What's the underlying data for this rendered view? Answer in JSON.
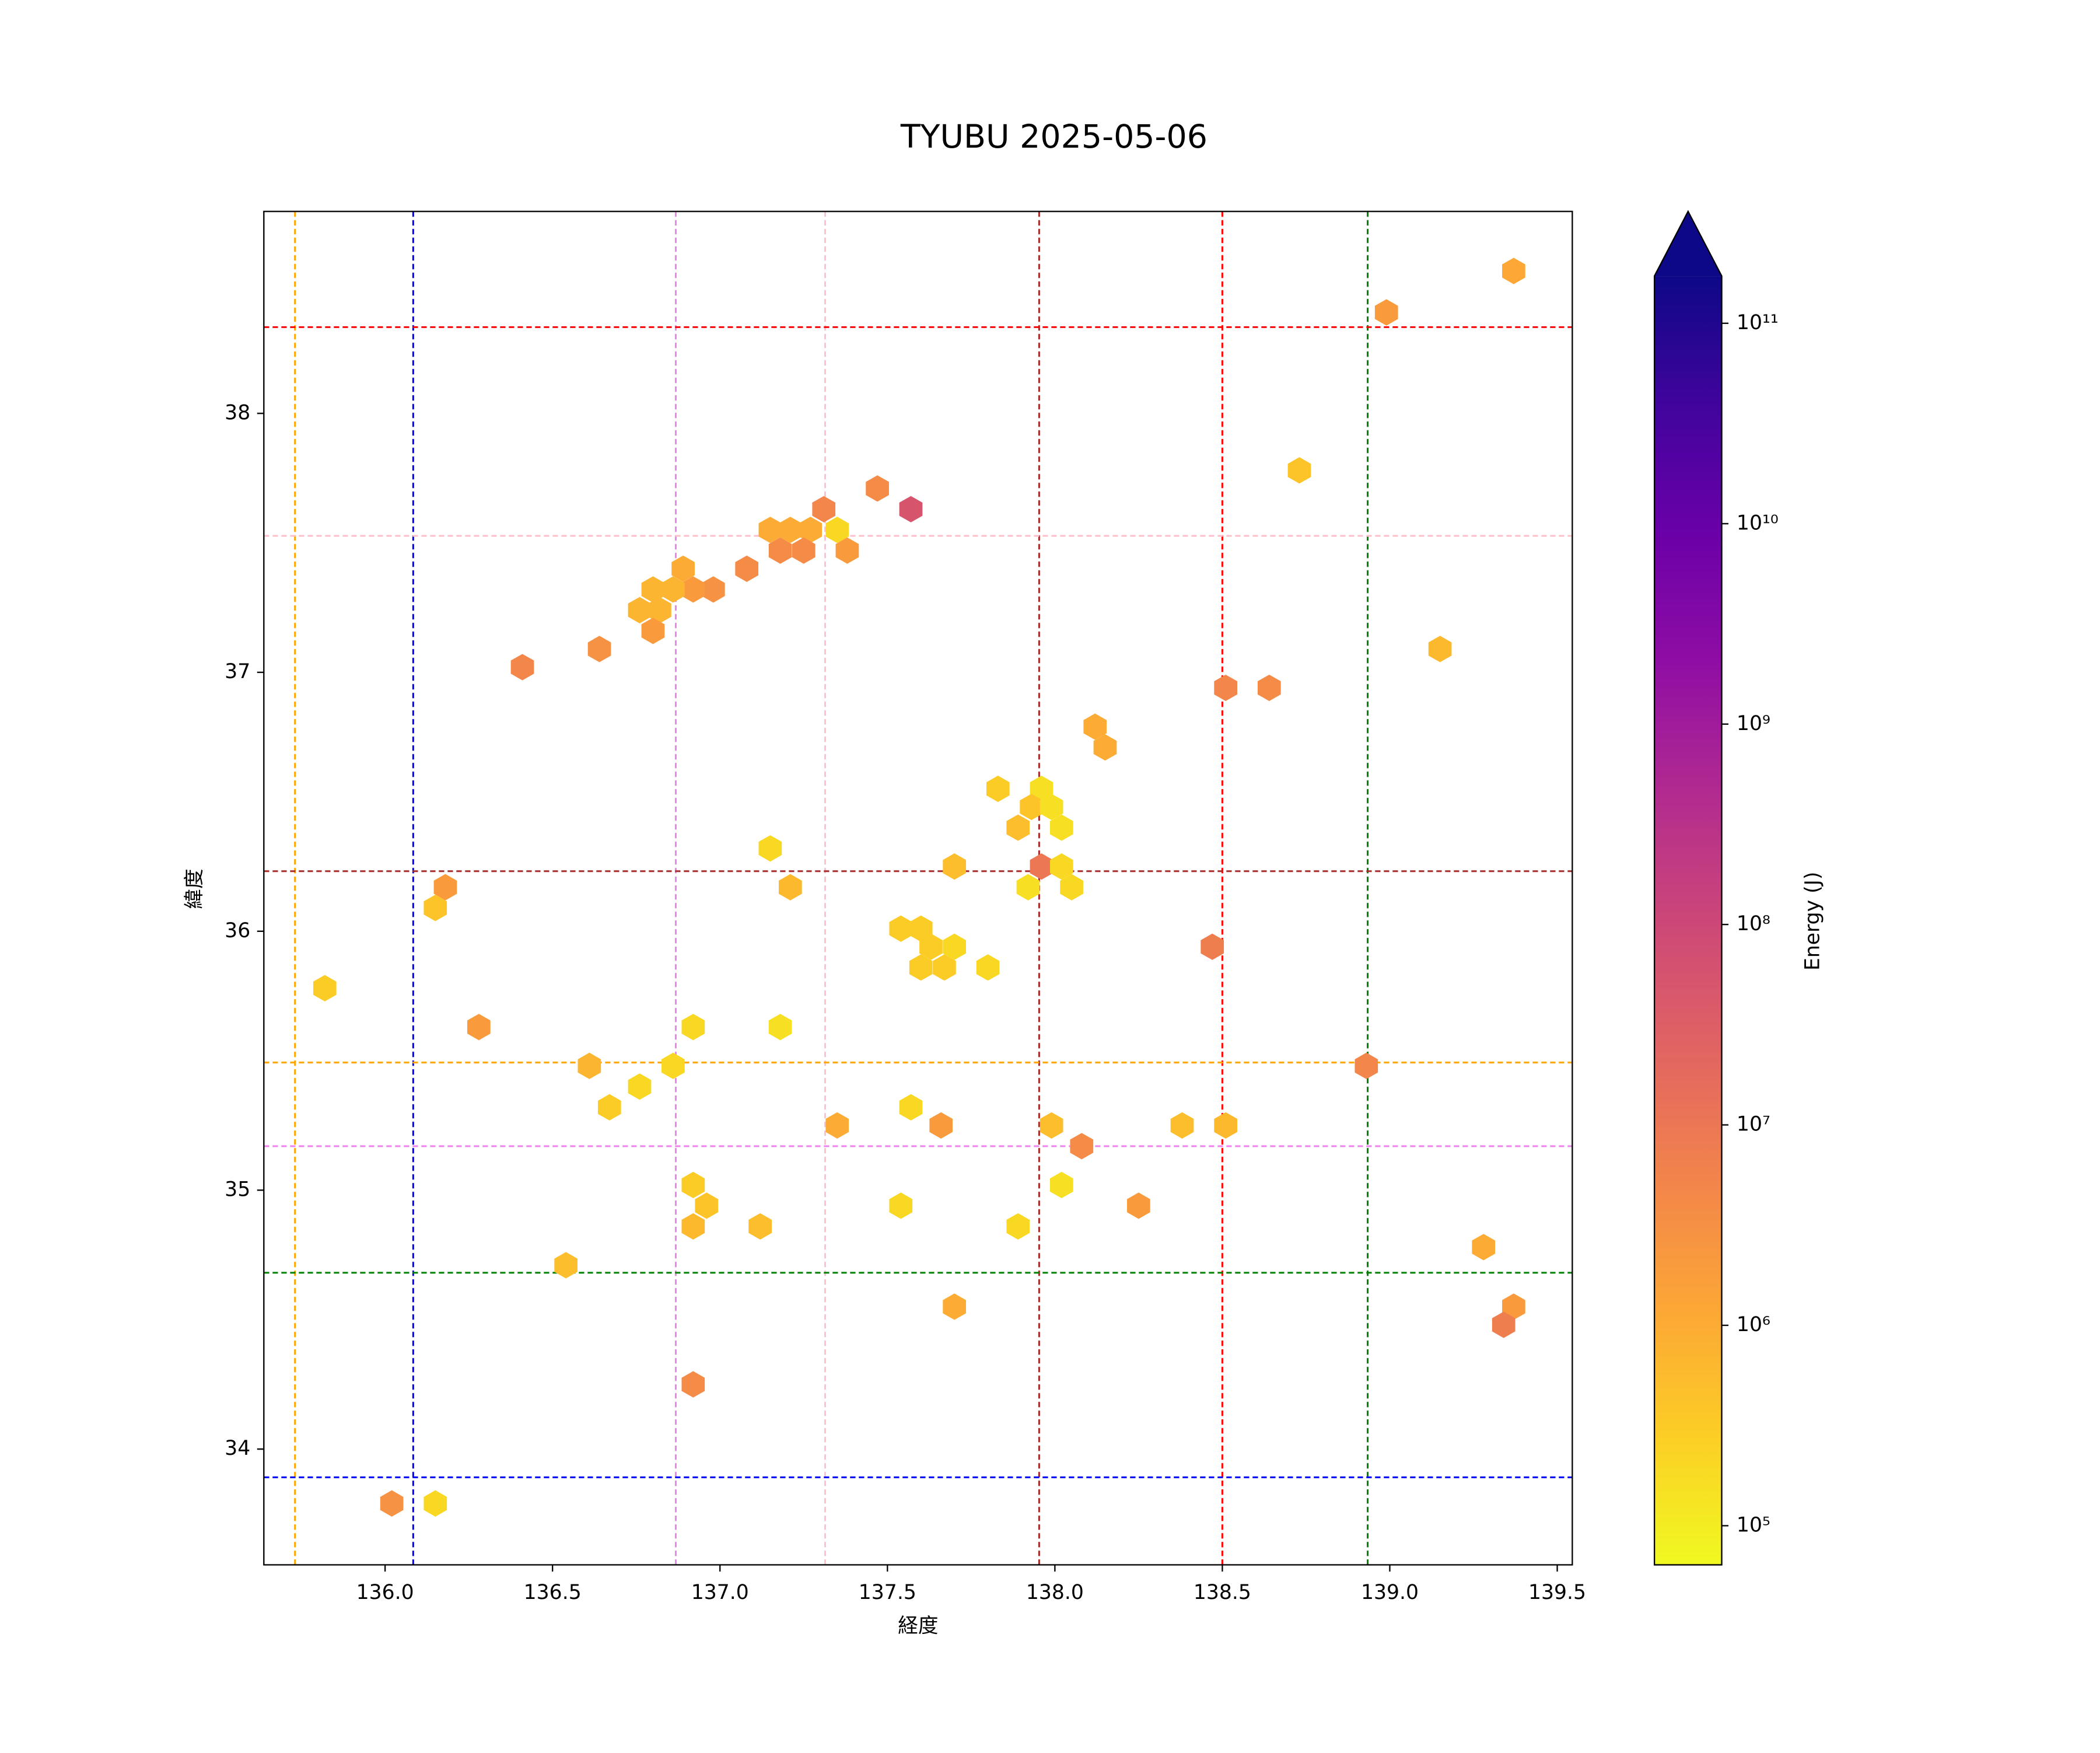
{
  "chart_data": {
    "type": "hexbin",
    "title": "TYUBU 2025-05-06",
    "x_label": "経度",
    "y_label": "緯度",
    "colorbar_label": "Energy (J)",
    "x": [
      139.37,
      138.99,
      138.73,
      139.15,
      137.47,
      137.57,
      137.31,
      137.35,
      137.27,
      137.21,
      137.15,
      137.18,
      137.25,
      137.38,
      137.08,
      136.89,
      136.98,
      136.92,
      136.8,
      136.86,
      136.76,
      136.82,
      136.8,
      136.64,
      136.41,
      138.51,
      138.64,
      138.12,
      138.15,
      137.83,
      137.96,
      137.93,
      137.99,
      137.89,
      138.02,
      137.15,
      137.7,
      137.96,
      138.02,
      137.21,
      137.92,
      138.05,
      136.18,
      136.15,
      137.54,
      137.6,
      137.63,
      137.7,
      137.6,
      137.67,
      137.8,
      138.47,
      135.82,
      136.28,
      136.92,
      137.18,
      136.61,
      136.86,
      138.93,
      136.76,
      136.67,
      137.57,
      137.35,
      137.66,
      137.99,
      138.38,
      138.51,
      138.08,
      136.92,
      138.02,
      136.96,
      137.54,
      138.25,
      136.92,
      137.12,
      137.89,
      139.28,
      136.54,
      137.7,
      139.37,
      139.34,
      136.92,
      136.02,
      136.15
    ],
    "y": [
      38.55,
      38.39,
      37.78,
      37.09,
      37.71,
      37.63,
      37.63,
      37.55,
      37.55,
      37.55,
      37.55,
      37.47,
      37.47,
      37.47,
      37.4,
      37.4,
      37.32,
      37.32,
      37.32,
      37.32,
      37.24,
      37.24,
      37.16,
      37.09,
      37.02,
      36.94,
      36.94,
      36.79,
      36.71,
      36.55,
      36.55,
      36.48,
      36.48,
      36.4,
      36.4,
      36.32,
      36.25,
      36.25,
      36.25,
      36.17,
      36.17,
      36.17,
      36.17,
      36.09,
      36.01,
      36.01,
      35.94,
      35.94,
      35.86,
      35.86,
      35.86,
      35.94,
      35.78,
      35.63,
      35.63,
      35.63,
      35.48,
      35.48,
      35.48,
      35.4,
      35.32,
      35.32,
      35.25,
      35.25,
      35.25,
      35.25,
      35.25,
      35.17,
      35.02,
      35.02,
      34.94,
      34.94,
      34.94,
      34.86,
      34.86,
      34.86,
      34.78,
      34.71,
      34.55,
      34.55,
      34.48,
      34.25,
      33.79,
      33.79
    ],
    "values": [
      1200000,
      2000000,
      400000,
      600000,
      4000000,
      50000000,
      5000000,
      200000,
      1000000,
      1000000,
      1000000,
      4000000,
      4000000,
      2000000,
      4000000,
      1000000,
      3000000,
      2000000,
      700000,
      700000,
      700000,
      700000,
      2000000,
      3000000,
      5000000,
      5000000,
      4000000,
      1000000,
      1000000,
      300000,
      150000,
      400000,
      150000,
      500000,
      150000,
      200000,
      500000,
      10000000,
      200000,
      600000,
      150000,
      200000,
      2000000,
      400000,
      300000,
      300000,
      300000,
      200000,
      300000,
      300000,
      200000,
      7000000,
      300000,
      2000000,
      200000,
      150000,
      700000,
      200000,
      5000000,
      200000,
      300000,
      200000,
      1000000,
      2000000,
      500000,
      500000,
      600000,
      4000000,
      300000,
      150000,
      400000,
      200000,
      2000000,
      600000,
      500000,
      200000,
      1000000,
      500000,
      1000000,
      2000000,
      7000000,
      4000000,
      3000000,
      200000
    ],
    "xlim": [
      135.638,
      139.545
    ],
    "ylim": [
      33.553,
      38.78
    ],
    "xticks": [
      {
        "value": 136,
        "label": "136.0"
      },
      {
        "value": 136.5,
        "label": "136.5"
      },
      {
        "value": 137,
        "label": "137.0"
      },
      {
        "value": 137.5,
        "label": "137.5"
      },
      {
        "value": 138,
        "label": "138.0"
      },
      {
        "value": 138.5,
        "label": "138.5"
      },
      {
        "value": 139,
        "label": "139.0"
      },
      {
        "value": 139.5,
        "label": "139.5"
      }
    ],
    "yticks": [
      34,
      35,
      36,
      37,
      38
    ],
    "colormap": "plasma_r",
    "color_log_scale": true,
    "colorbar_extend": "max",
    "clim": [
      63800,
      172000000000
    ],
    "cticks": [
      {
        "value": 100000,
        "label": "10⁵"
      },
      {
        "value": 1000000,
        "label": "10⁶"
      },
      {
        "value": 10000000,
        "label": "10⁷"
      },
      {
        "value": 100000000,
        "label": "10⁸"
      },
      {
        "value": 1000000000,
        "label": "10⁹"
      },
      {
        "value": 10000000000,
        "label": "10¹⁰"
      },
      {
        "value": 100000000000,
        "label": "10¹¹"
      }
    ],
    "reference_lines": [
      {
        "axis": "x",
        "value": 135.731,
        "color": "orange"
      },
      {
        "axis": "x",
        "value": 136.084,
        "color": "blue"
      },
      {
        "axis": "x",
        "value": 136.868,
        "color": "violet"
      },
      {
        "axis": "x",
        "value": 137.314,
        "color": "pink"
      },
      {
        "axis": "x",
        "value": 137.953,
        "color": "brown"
      },
      {
        "axis": "x",
        "value": 138.5,
        "color": "red"
      },
      {
        "axis": "x",
        "value": 138.934,
        "color": "green"
      },
      {
        "axis": "y",
        "value": 38.333,
        "color": "red"
      },
      {
        "axis": "y",
        "value": 37.527,
        "color": "pink"
      },
      {
        "axis": "y",
        "value": 36.232,
        "color": "brown"
      },
      {
        "axis": "y",
        "value": 35.493,
        "color": "orange"
      },
      {
        "axis": "y",
        "value": 35.17,
        "color": "violet"
      },
      {
        "axis": "y",
        "value": 34.681,
        "color": "green"
      },
      {
        "axis": "y",
        "value": 33.891,
        "color": "blue"
      }
    ]
  }
}
